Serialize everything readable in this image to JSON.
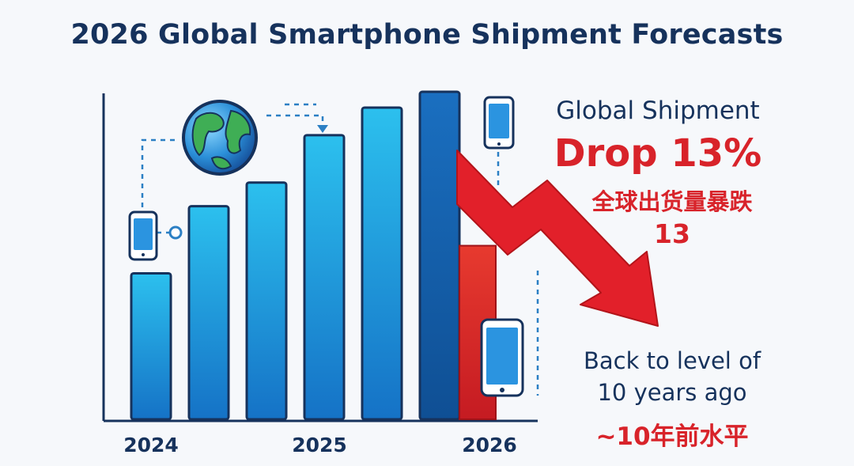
{
  "header": {
    "title": "2026 Global Smartphone Shipment Forecasts"
  },
  "chart_data": {
    "type": "bar",
    "title": "2026 Global Smartphone Shipment Forecasts",
    "xlabel": "",
    "ylabel": "",
    "x_tick_labels": [
      "2024",
      "2025",
      "2026"
    ],
    "bar_values": [
      185,
      270,
      300,
      360,
      395,
      415
    ],
    "drop_bar_value": 220,
    "trend": "decline",
    "grid": false,
    "legend": "none"
  },
  "annotations": {
    "line1": "Global Shipment",
    "line2": "Drop 13%",
    "line3": "全球出货量暴跌",
    "line4": "13",
    "line5": "Back to level of",
    "line6": "10 years ago",
    "line7": "~10年前水平"
  },
  "colors": {
    "bar_light": "#29b6ea",
    "bar_dark": "#1565b5",
    "drop": "#e2202a",
    "text_dark": "#16325c",
    "text_red": "#d8232a"
  },
  "icons": [
    "globe-icon",
    "smartphone-icon"
  ]
}
